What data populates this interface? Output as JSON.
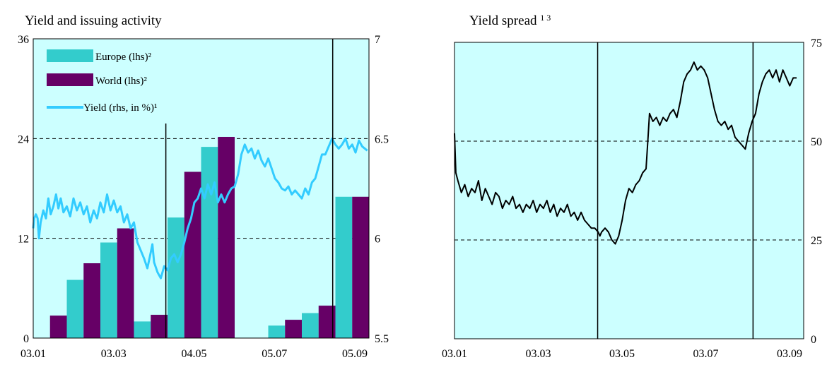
{
  "chart_data": [
    {
      "type": "bar+line",
      "title": "Yield and issuing activity",
      "x_tick_labels": [
        "03.01",
        "03.03",
        "04.05",
        "05.07",
        "05.09"
      ],
      "y_left": {
        "ticks": [
          0,
          12,
          24,
          36
        ],
        "range": [
          0,
          36
        ]
      },
      "y_right": {
        "ticks": [
          "5.5",
          "6",
          "6.5",
          "7"
        ],
        "range": [
          5.5,
          7
        ]
      },
      "legend": [
        {
          "label": "Europe (lhs)²",
          "color": "#33cccc",
          "kind": "bar"
        },
        {
          "label": "World (lhs)²",
          "color": "#660066",
          "kind": "bar"
        },
        {
          "label": "Yield (rhs, in %)¹",
          "color": "#33ccff",
          "kind": "line"
        }
      ],
      "bar_series": [
        {
          "name": "Europe (lhs)²",
          "color": "#33cccc",
          "values": [
            null,
            7,
            11.5,
            2,
            14.5,
            23,
            null,
            1.5,
            3,
            17
          ]
        },
        {
          "name": "World (lhs)²",
          "color": "#660066",
          "values": [
            2.7,
            9,
            13.2,
            2.8,
            20,
            24.2,
            null,
            2.2,
            3.9,
            17
          ]
        }
      ],
      "bar_groups": 10,
      "vertical_markers_group": [
        3.95,
        8.92
      ],
      "yield_series": {
        "name": "Yield (rhs, in %)¹",
        "color": "#33ccff",
        "points": [
          [
            0,
            6.05
          ],
          [
            0.03,
            6.1
          ],
          [
            0.08,
            6.12
          ],
          [
            0.13,
            6.1
          ],
          [
            0.17,
            6.0
          ],
          [
            0.22,
            6.08
          ],
          [
            0.3,
            6.14
          ],
          [
            0.38,
            6.1
          ],
          [
            0.45,
            6.2
          ],
          [
            0.52,
            6.12
          ],
          [
            0.6,
            6.16
          ],
          [
            0.68,
            6.22
          ],
          [
            0.75,
            6.15
          ],
          [
            0.82,
            6.2
          ],
          [
            0.9,
            6.13
          ],
          [
            1.0,
            6.16
          ],
          [
            1.1,
            6.11
          ],
          [
            1.2,
            6.2
          ],
          [
            1.3,
            6.14
          ],
          [
            1.4,
            6.18
          ],
          [
            1.5,
            6.12
          ],
          [
            1.6,
            6.16
          ],
          [
            1.7,
            6.08
          ],
          [
            1.8,
            6.14
          ],
          [
            1.9,
            6.1
          ],
          [
            2.0,
            6.18
          ],
          [
            2.1,
            6.13
          ],
          [
            2.2,
            6.22
          ],
          [
            2.3,
            6.14
          ],
          [
            2.4,
            6.19
          ],
          [
            2.5,
            6.13
          ],
          [
            2.6,
            6.16
          ],
          [
            2.7,
            6.08
          ],
          [
            2.8,
            6.12
          ],
          [
            2.9,
            6.05
          ],
          [
            3.0,
            6.08
          ],
          [
            3.1,
            5.98
          ],
          [
            3.2,
            5.94
          ],
          [
            3.3,
            5.9
          ],
          [
            3.4,
            5.85
          ],
          [
            3.5,
            5.93
          ],
          [
            3.55,
            5.97
          ],
          [
            3.6,
            5.88
          ],
          [
            3.7,
            5.83
          ],
          [
            3.8,
            5.8
          ],
          [
            3.9,
            5.86
          ],
          [
            4.0,
            5.84
          ],
          [
            4.1,
            5.9
          ],
          [
            4.2,
            5.92
          ],
          [
            4.3,
            5.88
          ],
          [
            4.4,
            5.92
          ],
          [
            4.5,
            5.98
          ],
          [
            4.6,
            6.05
          ],
          [
            4.7,
            6.1
          ],
          [
            4.8,
            6.18
          ],
          [
            4.9,
            6.2
          ],
          [
            5.0,
            6.25
          ],
          [
            5.1,
            6.2
          ],
          [
            5.2,
            6.27
          ],
          [
            5.3,
            6.22
          ],
          [
            5.4,
            6.28
          ],
          [
            5.5,
            6.18
          ],
          [
            5.6,
            6.22
          ],
          [
            5.7,
            6.18
          ],
          [
            5.8,
            6.22
          ],
          [
            5.9,
            6.25
          ],
          [
            6.0,
            6.26
          ],
          [
            6.1,
            6.32
          ],
          [
            6.2,
            6.42
          ],
          [
            6.3,
            6.47
          ],
          [
            6.4,
            6.43
          ],
          [
            6.5,
            6.45
          ],
          [
            6.6,
            6.4
          ],
          [
            6.7,
            6.44
          ],
          [
            6.8,
            6.39
          ],
          [
            6.9,
            6.36
          ],
          [
            7.0,
            6.4
          ],
          [
            7.1,
            6.35
          ],
          [
            7.2,
            6.3
          ],
          [
            7.3,
            6.28
          ],
          [
            7.4,
            6.25
          ],
          [
            7.5,
            6.24
          ],
          [
            7.6,
            6.26
          ],
          [
            7.7,
            6.22
          ],
          [
            7.8,
            6.24
          ],
          [
            7.9,
            6.22
          ],
          [
            8.0,
            6.2
          ],
          [
            8.1,
            6.25
          ],
          [
            8.2,
            6.22
          ],
          [
            8.3,
            6.28
          ],
          [
            8.4,
            6.3
          ],
          [
            8.5,
            6.36
          ],
          [
            8.6,
            6.42
          ],
          [
            8.7,
            6.42
          ],
          [
            8.8,
            6.46
          ],
          [
            8.9,
            6.5
          ],
          [
            9.0,
            6.47
          ],
          [
            9.1,
            6.45
          ],
          [
            9.2,
            6.47
          ],
          [
            9.3,
            6.5
          ],
          [
            9.4,
            6.45
          ],
          [
            9.5,
            6.47
          ],
          [
            9.6,
            6.43
          ],
          [
            9.7,
            6.49
          ],
          [
            9.8,
            6.46
          ],
          [
            9.95,
            6.44
          ]
        ]
      }
    },
    {
      "type": "line",
      "title": "Yield spread",
      "title_sup": "1 3",
      "x_tick_labels": [
        "03.01",
        "03.03",
        "03.05",
        "03.07",
        "03.09"
      ],
      "y": {
        "ticks": [
          0,
          25,
          50,
          75
        ],
        "range": [
          0,
          75
        ]
      },
      "vertical_markers_x": [
        0.41,
        0.855
      ],
      "series": {
        "color": "#000000",
        "points": [
          [
            0,
            52
          ],
          [
            0.004,
            42
          ],
          [
            0.01,
            40
          ],
          [
            0.02,
            37
          ],
          [
            0.03,
            39
          ],
          [
            0.04,
            36
          ],
          [
            0.05,
            38
          ],
          [
            0.06,
            37
          ],
          [
            0.07,
            40
          ],
          [
            0.08,
            35
          ],
          [
            0.09,
            38
          ],
          [
            0.1,
            36
          ],
          [
            0.11,
            34
          ],
          [
            0.12,
            37
          ],
          [
            0.13,
            36
          ],
          [
            0.14,
            33
          ],
          [
            0.15,
            35
          ],
          [
            0.16,
            34
          ],
          [
            0.17,
            36
          ],
          [
            0.18,
            33
          ],
          [
            0.19,
            34
          ],
          [
            0.2,
            32
          ],
          [
            0.21,
            34
          ],
          [
            0.22,
            33
          ],
          [
            0.23,
            35
          ],
          [
            0.24,
            32
          ],
          [
            0.25,
            34
          ],
          [
            0.26,
            33
          ],
          [
            0.27,
            35
          ],
          [
            0.28,
            32
          ],
          [
            0.29,
            34
          ],
          [
            0.3,
            31
          ],
          [
            0.31,
            33
          ],
          [
            0.32,
            32
          ],
          [
            0.33,
            34
          ],
          [
            0.34,
            31
          ],
          [
            0.35,
            32
          ],
          [
            0.36,
            30
          ],
          [
            0.37,
            32
          ],
          [
            0.38,
            30
          ],
          [
            0.39,
            29
          ],
          [
            0.4,
            28
          ],
          [
            0.41,
            28
          ],
          [
            0.42,
            27
          ],
          [
            0.425,
            26
          ],
          [
            0.43,
            27
          ],
          [
            0.44,
            28
          ],
          [
            0.45,
            27
          ],
          [
            0.46,
            25
          ],
          [
            0.47,
            24
          ],
          [
            0.48,
            26
          ],
          [
            0.49,
            30
          ],
          [
            0.5,
            35
          ],
          [
            0.51,
            38
          ],
          [
            0.52,
            37
          ],
          [
            0.53,
            39
          ],
          [
            0.54,
            40
          ],
          [
            0.55,
            42
          ],
          [
            0.56,
            43
          ],
          [
            0.565,
            50
          ],
          [
            0.57,
            57
          ],
          [
            0.58,
            55
          ],
          [
            0.59,
            56
          ],
          [
            0.6,
            54
          ],
          [
            0.61,
            56
          ],
          [
            0.62,
            55
          ],
          [
            0.63,
            57
          ],
          [
            0.64,
            58
          ],
          [
            0.65,
            56
          ],
          [
            0.66,
            60
          ],
          [
            0.67,
            65
          ],
          [
            0.68,
            67
          ],
          [
            0.69,
            68
          ],
          [
            0.7,
            70
          ],
          [
            0.71,
            68
          ],
          [
            0.72,
            69
          ],
          [
            0.73,
            68
          ],
          [
            0.74,
            66
          ],
          [
            0.75,
            62
          ],
          [
            0.76,
            58
          ],
          [
            0.77,
            55
          ],
          [
            0.78,
            54
          ],
          [
            0.79,
            55
          ],
          [
            0.8,
            53
          ],
          [
            0.81,
            54
          ],
          [
            0.82,
            51
          ],
          [
            0.83,
            50
          ],
          [
            0.84,
            49
          ],
          [
            0.85,
            48
          ],
          [
            0.86,
            52
          ],
          [
            0.87,
            55
          ],
          [
            0.88,
            57
          ],
          [
            0.89,
            62
          ],
          [
            0.9,
            65
          ],
          [
            0.91,
            67
          ],
          [
            0.92,
            68
          ],
          [
            0.93,
            66
          ],
          [
            0.94,
            68
          ],
          [
            0.95,
            65
          ],
          [
            0.96,
            68
          ],
          [
            0.97,
            66
          ],
          [
            0.98,
            64
          ],
          [
            0.99,
            66
          ],
          [
            1.0,
            66
          ]
        ]
      }
    }
  ]
}
